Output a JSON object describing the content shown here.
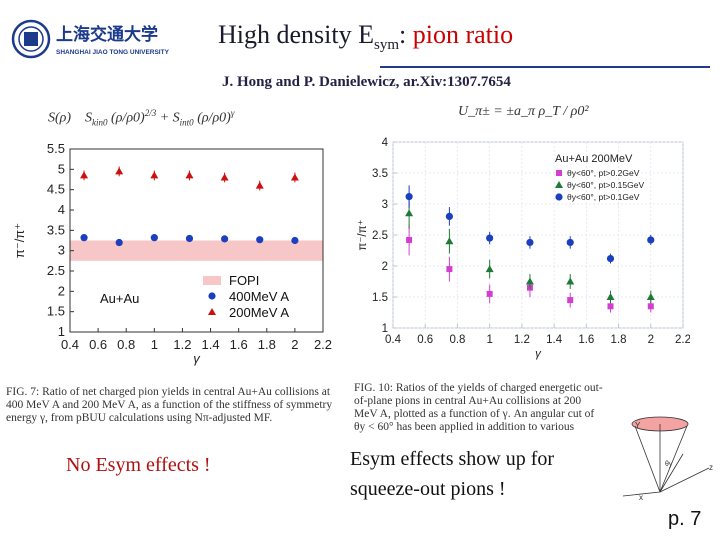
{
  "header": {
    "logo_cn": "上海交通大学",
    "logo_en": "SHANGHAI JIAO TONG UNIVERSITY",
    "title_prefix": "High density E",
    "title_sub": "sym",
    "title_colon": ": ",
    "title_highlight": "pion ratio",
    "citation": "J. Hong and P. Danielewicz, ar.Xiv:1307.7654",
    "colors": {
      "title": "#1a1a2e",
      "highlight": "#cc0000",
      "rule": "#233a8a"
    }
  },
  "left_figure": {
    "formula_1": "S(ρ)",
    "formula_2": "S",
    "formula_2_sub": "kin0",
    "formula_3": "(ρ/ρ0)",
    "formula_3_exp": "2/3",
    "formula_4": "+ S",
    "formula_4_sub": "int0",
    "formula_5": "(ρ/ρ0)",
    "formula_5_exp": "γ",
    "caption": "FIG. 7: Ratio of net charged pion yields in central Au+Au collisions at 400 MeV A and 200 MeV A, as a function of the stiffness of symmetry energy γ, from pBUU calculations using Nπ-adjusted MF.",
    "note": "No Esym effects !"
  },
  "right_figure": {
    "formula": "U_π± = ±a_π ρ_T / ρ0²",
    "caption": "FIG. 10: Ratios of the yields of charged energetic out-of-plane pions in central Au+Au collisions at 200 MeV A, plotted as a function of γ. An angular cut of θy < 60° has been applied in addition to various indicated transverse momentum cuts.",
    "note": "Esym effects show up for squeeze-out pions !"
  },
  "inset": {
    "label_y": "Y",
    "label_z": "z",
    "label_x": "x",
    "label_theta": "θy"
  },
  "page_number": "p. 7",
  "chart_data": [
    {
      "type": "scatter",
      "ylabel": "π⁻/π⁺",
      "xlabel": "γ",
      "xlim": [
        0.4,
        2.2
      ],
      "ylim": [
        1,
        5.5
      ],
      "xticks": [
        "0.4",
        "0.6",
        "0.8",
        "1",
        "1.2",
        "1.4",
        "1.6",
        "1.8",
        "2",
        "2.2"
      ],
      "yticks": [
        "1",
        "1.5",
        "2",
        "2.5",
        "3",
        "3.5",
        "4",
        "4.5",
        "5",
        "5.5"
      ],
      "band": {
        "name": "FOPI",
        "ymin": 2.75,
        "ymax": 3.25,
        "color": "#f7c6c6"
      },
      "annotation": "Au+Au",
      "legend_position": "bottom-right",
      "series": [
        {
          "name": "400MeV A",
          "marker": "circle",
          "color": "#1a3fbf",
          "x": [
            0.5,
            0.75,
            1.0,
            1.25,
            1.5,
            1.75,
            2.0
          ],
          "y": [
            3.32,
            3.2,
            3.32,
            3.3,
            3.29,
            3.27,
            3.25
          ],
          "err": [
            0.06,
            0.06,
            0.06,
            0.06,
            0.06,
            0.06,
            0.06
          ]
        },
        {
          "name": "200MeV A",
          "marker": "triangle",
          "color": "#cc1111",
          "x": [
            0.5,
            0.75,
            1.0,
            1.25,
            1.5,
            1.75,
            2.0
          ],
          "y": [
            4.85,
            4.95,
            4.85,
            4.85,
            4.8,
            4.6,
            4.8
          ],
          "err": [
            0.12,
            0.12,
            0.12,
            0.12,
            0.12,
            0.12,
            0.12
          ]
        }
      ],
      "grid": false
    },
    {
      "type": "scatter",
      "ylabel": "π⁻/π⁺",
      "xlabel": "γ",
      "xlim": [
        0.4,
        2.2
      ],
      "ylim": [
        1,
        4
      ],
      "xticks": [
        "0.4",
        "0.6",
        "0.8",
        "1",
        "1.2",
        "1.4",
        "1.6",
        "1.8",
        "2",
        "2.2"
      ],
      "yticks": [
        "1",
        "1.5",
        "2",
        "2.5",
        "3",
        "3.5",
        "4"
      ],
      "legend_title": "Au+Au 200MeV",
      "legend_position": "top-right",
      "grid": true,
      "series": [
        {
          "name": "θy<60°, pt>0.2GeV",
          "marker": "square",
          "color": "#d23fd0",
          "x": [
            0.5,
            0.75,
            1.0,
            1.25,
            1.5,
            1.75,
            2.0
          ],
          "y": [
            2.42,
            1.95,
            1.55,
            1.65,
            1.45,
            1.35,
            1.35
          ],
          "err": [
            0.25,
            0.2,
            0.15,
            0.15,
            0.12,
            0.1,
            0.1
          ]
        },
        {
          "name": "θy<60°, pt>0.15GeV",
          "marker": "triangle",
          "color": "#1f7a3a",
          "x": [
            0.5,
            0.75,
            1.0,
            1.25,
            1.5,
            1.75,
            2.0
          ],
          "y": [
            2.85,
            2.4,
            1.95,
            1.75,
            1.75,
            1.5,
            1.5
          ],
          "err": [
            0.25,
            0.2,
            0.15,
            0.12,
            0.12,
            0.1,
            0.1
          ]
        },
        {
          "name": "θy<60°, pt>0.1GeV",
          "marker": "circle",
          "color": "#1a3fbf",
          "x": [
            0.5,
            0.75,
            1.0,
            1.25,
            1.5,
            1.75,
            2.0
          ],
          "y": [
            3.12,
            2.8,
            2.45,
            2.38,
            2.38,
            2.12,
            2.42
          ],
          "err": [
            0.18,
            0.15,
            0.1,
            0.1,
            0.1,
            0.08,
            0.08
          ]
        }
      ]
    }
  ]
}
